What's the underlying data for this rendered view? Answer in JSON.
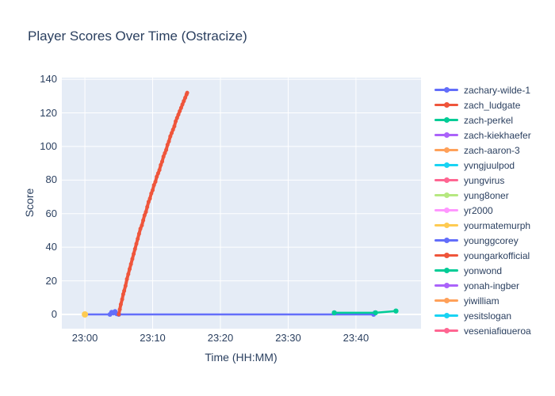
{
  "chart": {
    "title": "Player Scores Over Time (Ostracize)",
    "xlabel": "Time (HH:MM)",
    "ylabel": "Score"
  },
  "colors": {
    "text": "#2a3f5f",
    "plot_bg": "#e5ecf6",
    "grid": "#ffffff",
    "paper": "#ffffff"
  },
  "chart_data": {
    "type": "line",
    "title": "Player Scores Over Time (Ostracize)",
    "xlabel": "Time (HH:MM)",
    "ylabel": "Score",
    "grid": true,
    "legend_position": "right",
    "xlim_minutes": [
      -3.4,
      49.6
    ],
    "ylim": [
      -8.5,
      141
    ],
    "x_ticks": [
      {
        "minutes": 0,
        "label": "23:00"
      },
      {
        "minutes": 10,
        "label": "23:10"
      },
      {
        "minutes": 20,
        "label": "23:20"
      },
      {
        "minutes": 30,
        "label": "23:30"
      },
      {
        "minutes": 40,
        "label": "23:40"
      }
    ],
    "y_ticks": [
      {
        "value": 0,
        "label": "0"
      },
      {
        "value": 20,
        "label": "20"
      },
      {
        "value": 40,
        "label": "40"
      },
      {
        "value": 60,
        "label": "60"
      },
      {
        "value": 80,
        "label": "80"
      },
      {
        "value": 100,
        "label": "100"
      },
      {
        "value": 120,
        "label": "120"
      },
      {
        "value": 140,
        "label": "140"
      }
    ],
    "series": [
      {
        "name": "zachary-wilde-1",
        "color": "#636efa",
        "line_width": 2.5,
        "marker_size": 3,
        "points": [
          [
            0,
            0
          ],
          [
            3.7,
            0
          ],
          [
            3.95,
            1.3
          ],
          [
            4.2,
            0.8
          ],
          [
            4.45,
            1.8
          ],
          [
            4.7,
            0.3
          ],
          [
            5.0,
            0
          ],
          [
            42.6,
            0
          ],
          [
            42.8,
            1
          ]
        ]
      },
      {
        "name": "zach_ludgate",
        "color": "#ef553b",
        "line_width": 4,
        "marker_size": 2.5,
        "points": [
          [
            5.0,
            0
          ],
          [
            5.15,
            3
          ],
          [
            5.3,
            6
          ],
          [
            5.5,
            9
          ],
          [
            5.65,
            12
          ],
          [
            5.8,
            14
          ],
          [
            6.0,
            17
          ],
          [
            6.2,
            21
          ],
          [
            6.4,
            24
          ],
          [
            6.6,
            27
          ],
          [
            6.8,
            30
          ],
          [
            7.0,
            33
          ],
          [
            7.2,
            36
          ],
          [
            7.4,
            39
          ],
          [
            7.6,
            42
          ],
          [
            7.8,
            45
          ],
          [
            8.0,
            48
          ],
          [
            8.2,
            51
          ],
          [
            8.4,
            53
          ],
          [
            8.6,
            56
          ],
          [
            8.8,
            59
          ],
          [
            9.0,
            61
          ],
          [
            9.2,
            64
          ],
          [
            9.4,
            67
          ],
          [
            9.6,
            69
          ],
          [
            9.8,
            72
          ],
          [
            10.0,
            74
          ],
          [
            10.2,
            77
          ],
          [
            10.4,
            79
          ],
          [
            10.6,
            82
          ],
          [
            10.8,
            84
          ],
          [
            11.0,
            86
          ],
          [
            11.2,
            89
          ],
          [
            11.4,
            91
          ],
          [
            11.6,
            94
          ],
          [
            11.8,
            96
          ],
          [
            12.0,
            98
          ],
          [
            12.2,
            101
          ],
          [
            12.4,
            103
          ],
          [
            12.6,
            106
          ],
          [
            12.8,
            108
          ],
          [
            13.0,
            110
          ],
          [
            13.2,
            112
          ],
          [
            13.4,
            115
          ],
          [
            13.6,
            117
          ],
          [
            13.8,
            119
          ],
          [
            14.0,
            121
          ],
          [
            14.2,
            123
          ],
          [
            14.4,
            125
          ],
          [
            14.6,
            127
          ],
          [
            14.8,
            129
          ],
          [
            15.0,
            131
          ],
          [
            15.1,
            132
          ]
        ]
      },
      {
        "name": "zach-perkel",
        "color": "#00cc96",
        "line_width": 2.5,
        "marker_size": 3.2,
        "points": [
          [
            36.8,
            1
          ],
          [
            42.9,
            1
          ],
          [
            45.9,
            2
          ]
        ]
      },
      {
        "name": "zach-kiekhaefer",
        "color": "#ab63fa",
        "line_width": 2.5,
        "marker_size": 3,
        "points": []
      },
      {
        "name": "zach-aaron-3",
        "color": "#ffa15a",
        "line_width": 2.5,
        "marker_size": 3,
        "points": []
      },
      {
        "name": "yvngjuulpod",
        "color": "#19d3f3",
        "line_width": 2.5,
        "marker_size": 3,
        "points": []
      },
      {
        "name": "yungvirus",
        "color": "#ff6692",
        "line_width": 2.5,
        "marker_size": 3,
        "points": []
      },
      {
        "name": "yung8oner",
        "color": "#b6e880",
        "line_width": 2.5,
        "marker_size": 3,
        "points": []
      },
      {
        "name": "yr2000",
        "color": "#ff97ff",
        "line_width": 2.5,
        "marker_size": 3,
        "points": []
      },
      {
        "name": "yourmatemurph",
        "color": "#fecb52",
        "line_width": 2.5,
        "marker_size": 4,
        "points": [
          [
            0,
            0
          ]
        ]
      },
      {
        "name": "younggcorey",
        "color": "#636efa",
        "line_width": 2.5,
        "marker_size": 3,
        "points": []
      },
      {
        "name": "youngarkofficial",
        "color": "#ef553b",
        "line_width": 2.5,
        "marker_size": 3,
        "points": []
      },
      {
        "name": "yonwond",
        "color": "#00cc96",
        "line_width": 2.5,
        "marker_size": 3,
        "points": []
      },
      {
        "name": "yonah-ingber",
        "color": "#ab63fa",
        "line_width": 2.5,
        "marker_size": 3,
        "points": []
      },
      {
        "name": "yiwilliam",
        "color": "#ffa15a",
        "line_width": 2.5,
        "marker_size": 3,
        "points": []
      },
      {
        "name": "yesitslogan",
        "color": "#19d3f3",
        "line_width": 2.5,
        "marker_size": 3,
        "points": []
      },
      {
        "name": "yeseniafigueroa",
        "color": "#ff6692",
        "line_width": 2.5,
        "marker_size": 3,
        "points": []
      }
    ]
  }
}
